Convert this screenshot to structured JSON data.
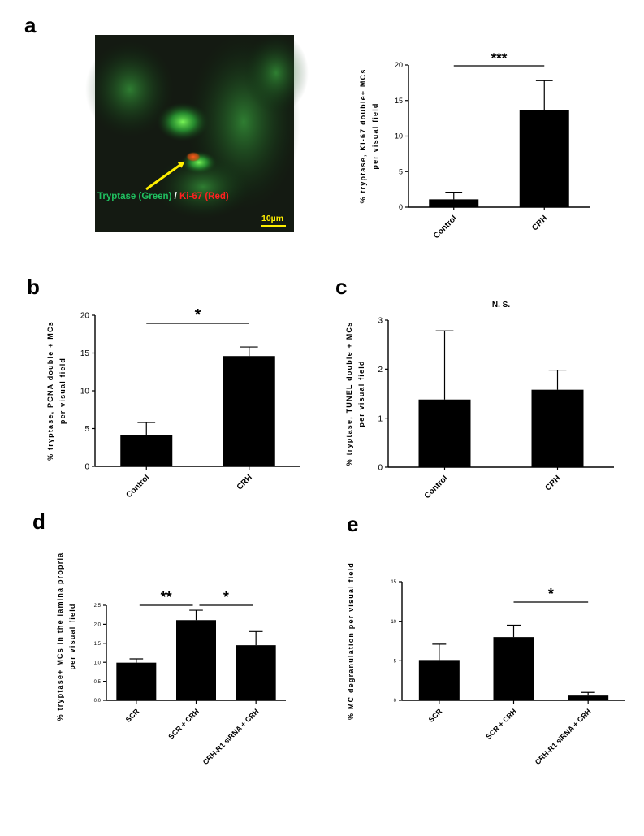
{
  "micrograph": {
    "label_green": "Tryptase (Green)",
    "label_sep": " / ",
    "label_red": "Ki-67 (Red)",
    "scale_bar": "10µm",
    "colors": {
      "green": "#20c060",
      "red": "#ff2020",
      "arrow": "#ffee00",
      "scale": "#ffee00"
    }
  },
  "chart_data": [
    {
      "id": "a",
      "panel": "a",
      "type": "bar",
      "categories": [
        "Control",
        "CRH"
      ],
      "values": [
        1.1,
        13.7
      ],
      "errors": [
        1.0,
        4.1
      ],
      "ylabel": [
        "% tryptase, Ki-67 double+ MCs",
        "per visual field"
      ],
      "ylim": [
        0,
        20
      ],
      "yticks": [
        0,
        5,
        10,
        15,
        20
      ],
      "tick_labels": [
        "0",
        "5",
        "10",
        "15",
        "20"
      ],
      "significance": [
        {
          "from": 0,
          "to": 1,
          "label": "***"
        }
      ],
      "title": "",
      "grid": false
    },
    {
      "id": "b",
      "panel": "b",
      "type": "bar",
      "categories": [
        "Control",
        "CRH"
      ],
      "values": [
        4.1,
        14.6
      ],
      "errors": [
        1.7,
        1.2
      ],
      "ylabel": [
        "% tryptase, PCNA double + MCs",
        "per visual field"
      ],
      "ylim": [
        0,
        20
      ],
      "yticks": [
        0,
        5,
        10,
        15,
        20
      ],
      "tick_labels": [
        "0",
        "5",
        "10",
        "15",
        "20"
      ],
      "significance": [
        {
          "from": 0,
          "to": 1,
          "label": "*"
        }
      ],
      "title": "",
      "grid": false
    },
    {
      "id": "c",
      "panel": "c",
      "type": "bar",
      "categories": [
        "Control",
        "CRH"
      ],
      "values": [
        1.38,
        1.58
      ],
      "errors": [
        1.4,
        0.4
      ],
      "ylabel": [
        "% tryptase, TUNEL double + MCs",
        "per visual field"
      ],
      "ylim": [
        0,
        3
      ],
      "yticks": [
        0,
        1,
        2,
        3
      ],
      "tick_labels": [
        "0",
        "1",
        "2",
        "3"
      ],
      "significance": [],
      "title": "N. S.",
      "grid": false
    },
    {
      "id": "d",
      "panel": "d",
      "type": "bar",
      "categories": [
        "SCR",
        "SCR + CRH",
        "CRH-R1 siRNA + CRH"
      ],
      "values": [
        0.99,
        2.11,
        1.45
      ],
      "errors": [
        0.1,
        0.26,
        0.36
      ],
      "ylabel": [
        "% tryptase+ MCs in the lamina propria",
        "per visual field"
      ],
      "ylim": [
        0,
        2.5
      ],
      "yticks": [
        0,
        0.5,
        1.0,
        1.5,
        2.0,
        2.5
      ],
      "tick_labels": [
        "0.0",
        "0.5",
        "1.0",
        "1.5",
        "2.0",
        "2.5"
      ],
      "significance": [
        {
          "from": 0,
          "to": 1,
          "label": "**"
        },
        {
          "from": 1,
          "to": 2,
          "label": "*"
        }
      ],
      "title": "",
      "grid": false
    },
    {
      "id": "e",
      "panel": "e",
      "type": "bar",
      "categories": [
        "SCR",
        "SCR + CRH",
        "CRH-R1 siRNA + CRH"
      ],
      "values": [
        5.1,
        8.0,
        0.6
      ],
      "errors": [
        2.0,
        1.5,
        0.4
      ],
      "ylabel": [
        "% MC degranulation per visual field"
      ],
      "ylim": [
        0,
        15
      ],
      "yticks": [
        0,
        5,
        10,
        15
      ],
      "tick_labels": [
        "0",
        "5",
        "10",
        "15"
      ],
      "significance": [
        {
          "from": 1,
          "to": 2,
          "label": "*"
        }
      ],
      "title": "",
      "grid": false
    }
  ]
}
